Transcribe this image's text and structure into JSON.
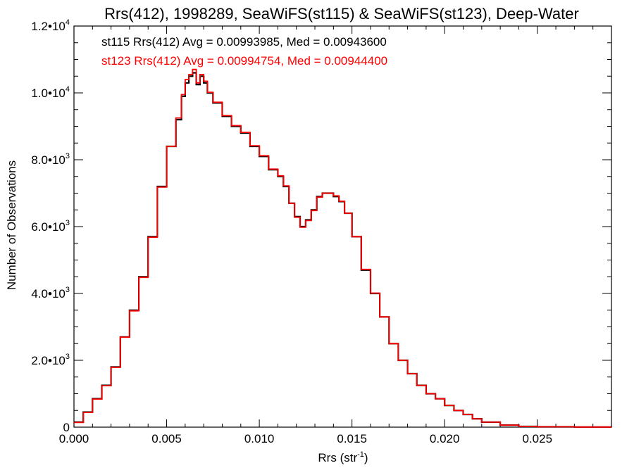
{
  "chart_data": {
    "type": "line",
    "title": "Rrs(412), 1998289, SeaWiFS(st115) & SeaWiFS(st123), Deep-Water",
    "xlabel": "Rrs (str",
    "xlabel_sup": "-1",
    "xlabel_suffix": ")",
    "ylabel": "Number of Observations",
    "xlim": [
      0,
      0.029
    ],
    "ylim": [
      0,
      12000
    ],
    "grid": false,
    "x_ticks": [
      {
        "value": 0.0,
        "label": "0.000"
      },
      {
        "value": 0.005,
        "label": "0.005"
      },
      {
        "value": 0.01,
        "label": "0.010"
      },
      {
        "value": 0.015,
        "label": "0.015"
      },
      {
        "value": 0.02,
        "label": "0.020"
      },
      {
        "value": 0.025,
        "label": "0.025"
      }
    ],
    "y_ticks": [
      {
        "value": 0,
        "mant": "0",
        "exp": ""
      },
      {
        "value": 2000,
        "mant": "2.0•10",
        "exp": "3"
      },
      {
        "value": 4000,
        "mant": "4.0•10",
        "exp": "3"
      },
      {
        "value": 6000,
        "mant": "6.0•10",
        "exp": "3"
      },
      {
        "value": 8000,
        "mant": "8.0•10",
        "exp": "3"
      },
      {
        "value": 10000,
        "mant": "1.0•10",
        "exp": "4"
      },
      {
        "value": 12000,
        "mant": "1.2•10",
        "exp": "4"
      }
    ],
    "annotations": [
      {
        "text": "st115 Rrs(412) Avg = 0.00993985, Med = 0.00943600",
        "color": "#000000"
      },
      {
        "text": "st123 Rrs(412) Avg = 0.00994754, Med = 0.00944400",
        "color": "#ff0000"
      }
    ],
    "x": [
      0.0,
      0.0005,
      0.001,
      0.0015,
      0.002,
      0.0025,
      0.003,
      0.0035,
      0.004,
      0.0045,
      0.005,
      0.0055,
      0.0058,
      0.006,
      0.0062,
      0.0064,
      0.0066,
      0.0068,
      0.007,
      0.0072,
      0.0075,
      0.008,
      0.0085,
      0.009,
      0.0095,
      0.01,
      0.0105,
      0.011,
      0.0113,
      0.0116,
      0.0119,
      0.0122,
      0.0125,
      0.0128,
      0.0131,
      0.0134,
      0.0137,
      0.014,
      0.0143,
      0.0146,
      0.015,
      0.0155,
      0.016,
      0.0165,
      0.017,
      0.0175,
      0.018,
      0.0185,
      0.019,
      0.0195,
      0.02,
      0.0205,
      0.021,
      0.0215,
      0.022,
      0.023,
      0.024,
      0.025,
      0.027,
      0.029
    ],
    "series": [
      {
        "name": "st115",
        "color": "#000000",
        "values": [
          150,
          450,
          850,
          1250,
          1800,
          2700,
          3500,
          4500,
          5700,
          7200,
          8400,
          9200,
          9900,
          10300,
          10500,
          10600,
          10250,
          10500,
          10300,
          10000,
          9700,
          9300,
          9000,
          8800,
          8400,
          8100,
          7700,
          7500,
          7200,
          6700,
          6300,
          6000,
          6200,
          6500,
          6900,
          7000,
          7000,
          6900,
          6750,
          6400,
          5700,
          4700,
          4000,
          3300,
          2500,
          2000,
          1600,
          1250,
          1000,
          850,
          650,
          500,
          380,
          250,
          150,
          60,
          20,
          10,
          4,
          1
        ]
      },
      {
        "name": "st123",
        "color": "#ff0000",
        "values": [
          140,
          440,
          840,
          1240,
          1790,
          2690,
          3480,
          4480,
          5680,
          7180,
          8400,
          9250,
          9950,
          10400,
          10550,
          10700,
          10300,
          10550,
          10350,
          10020,
          9720,
          9320,
          9020,
          8820,
          8420,
          8120,
          7720,
          7520,
          7220,
          6700,
          6280,
          5980,
          6180,
          6480,
          6880,
          7000,
          7000,
          6920,
          6760,
          6400,
          5700,
          4720,
          4010,
          3300,
          2500,
          2000,
          1600,
          1250,
          1000,
          850,
          650,
          500,
          380,
          250,
          150,
          60,
          20,
          10,
          4,
          1
        ]
      }
    ]
  }
}
